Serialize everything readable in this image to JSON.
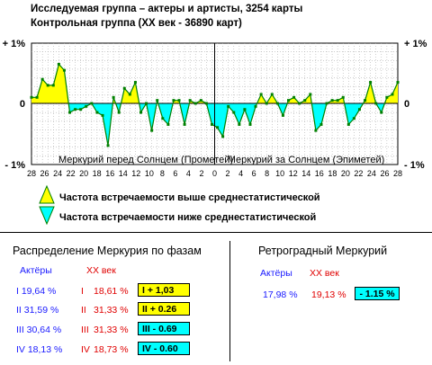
{
  "header": {
    "line1": "Исследуемая группа – актеры и артисты, 3254 карты",
    "line2": "Контрольная группа (ХХ век - 36890 карт)"
  },
  "chart_data": {
    "type": "area",
    "ylim": [
      -1,
      1
    ],
    "y_left_labels": [
      "+ 1%",
      "0",
      "- 1%"
    ],
    "y_right_labels": [
      "+ 1%",
      "0",
      "- 1%"
    ],
    "x_tick_labels": [
      "28",
      "26",
      "24",
      "22",
      "20",
      "18",
      "16",
      "14",
      "12",
      "10",
      "8",
      "6",
      "4",
      "2",
      "0",
      "2",
      "4",
      "6",
      "8",
      "10",
      "12",
      "14",
      "16",
      "18",
      "20",
      "22",
      "24",
      "26",
      "28"
    ],
    "region_left_label": "Меркурий перед Солнцем (Прометей)",
    "region_right_label": "Меркурий за Солнцем (Эпиметей)",
    "values": [
      0.1,
      0.1,
      0.4,
      0.3,
      0.3,
      0.65,
      0.55,
      -0.15,
      -0.1,
      -0.1,
      -0.05,
      0.0,
      -0.15,
      -0.2,
      -0.7,
      0.1,
      -0.15,
      0.25,
      0.15,
      0.35,
      -0.15,
      0.0,
      -0.45,
      0.05,
      -0.25,
      -0.35,
      0.05,
      0.05,
      -0.35,
      0.05,
      0.0,
      0.05,
      0.0,
      -0.35,
      -0.4,
      -0.55,
      -0.05,
      -0.15,
      -0.35,
      -0.1,
      -0.35,
      -0.05,
      0.15,
      0.0,
      0.15,
      0.0,
      -0.2,
      0.05,
      0.1,
      0.0,
      0.05,
      0.15,
      -0.45,
      -0.35,
      0.0,
      0.05,
      0.05,
      0.1,
      -0.35,
      -0.25,
      -0.1,
      0.05,
      0.35,
      0.0,
      -0.15,
      0.1,
      0.15,
      0.35
    ],
    "colors": {
      "above": "#ffff00",
      "below": "#00ffff",
      "line": "#008000"
    }
  },
  "legend": {
    "above": "Частота встречаемости выше среднестатистической",
    "below": "Частота встречаемости ниже среднестатистической"
  },
  "phases": {
    "title": "Распределение Меркурия по фазам",
    "col_actors": "Актёры",
    "col_century": "ХХ век",
    "rows": [
      {
        "phase": "I",
        "actors": "I   19,64 %",
        "roman": "I",
        "century": "18,61 %",
        "box": "I    + 1,03",
        "kind": "above"
      },
      {
        "phase": "II",
        "actors": "II  31,59 %",
        "roman": "II",
        "century": "31,33 %",
        "box": "II   + 0.26",
        "kind": "above"
      },
      {
        "phase": "III",
        "actors": "III  30,64 %",
        "roman": "III",
        "century": "31,33 %",
        "box": "III  - 0.69",
        "kind": "below"
      },
      {
        "phase": "IV",
        "actors": "IV  18,13 %",
        "roman": "IV",
        "century": "18,73 %",
        "box": "IV  - 0.60",
        "kind": "below"
      }
    ]
  },
  "retro": {
    "title": "Ретроградный Меркурий",
    "col_actors": "Актёры",
    "col_century": "ХХ век",
    "actors": "17,98 %",
    "century": "19,13 %",
    "box": "- 1.15 %"
  }
}
